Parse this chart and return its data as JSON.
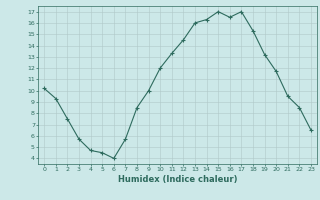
{
  "x": [
    0,
    1,
    2,
    3,
    4,
    5,
    6,
    7,
    8,
    9,
    10,
    11,
    12,
    13,
    14,
    15,
    16,
    17,
    18,
    19,
    20,
    21,
    22,
    23
  ],
  "y": [
    10.2,
    9.3,
    7.5,
    5.7,
    4.7,
    4.5,
    4.0,
    5.7,
    8.5,
    10.0,
    12.0,
    13.3,
    14.5,
    16.0,
    16.3,
    17.0,
    16.5,
    17.0,
    15.3,
    13.2,
    11.7,
    9.5,
    8.5,
    6.5
  ],
  "xlim": [
    -0.5,
    23.5
  ],
  "ylim": [
    3.5,
    17.5
  ],
  "yticks": [
    4,
    5,
    6,
    7,
    8,
    9,
    10,
    11,
    12,
    13,
    14,
    15,
    16,
    17
  ],
  "xticks": [
    0,
    1,
    2,
    3,
    4,
    5,
    6,
    7,
    8,
    9,
    10,
    11,
    12,
    13,
    14,
    15,
    16,
    17,
    18,
    19,
    20,
    21,
    22,
    23
  ],
  "xlabel": "Humidex (Indice chaleur)",
  "line_color": "#2e6b5e",
  "marker": "+",
  "bg_color": "#cce8e8",
  "grid_color": "#b0c8c8",
  "font_color": "#2e6b5e"
}
